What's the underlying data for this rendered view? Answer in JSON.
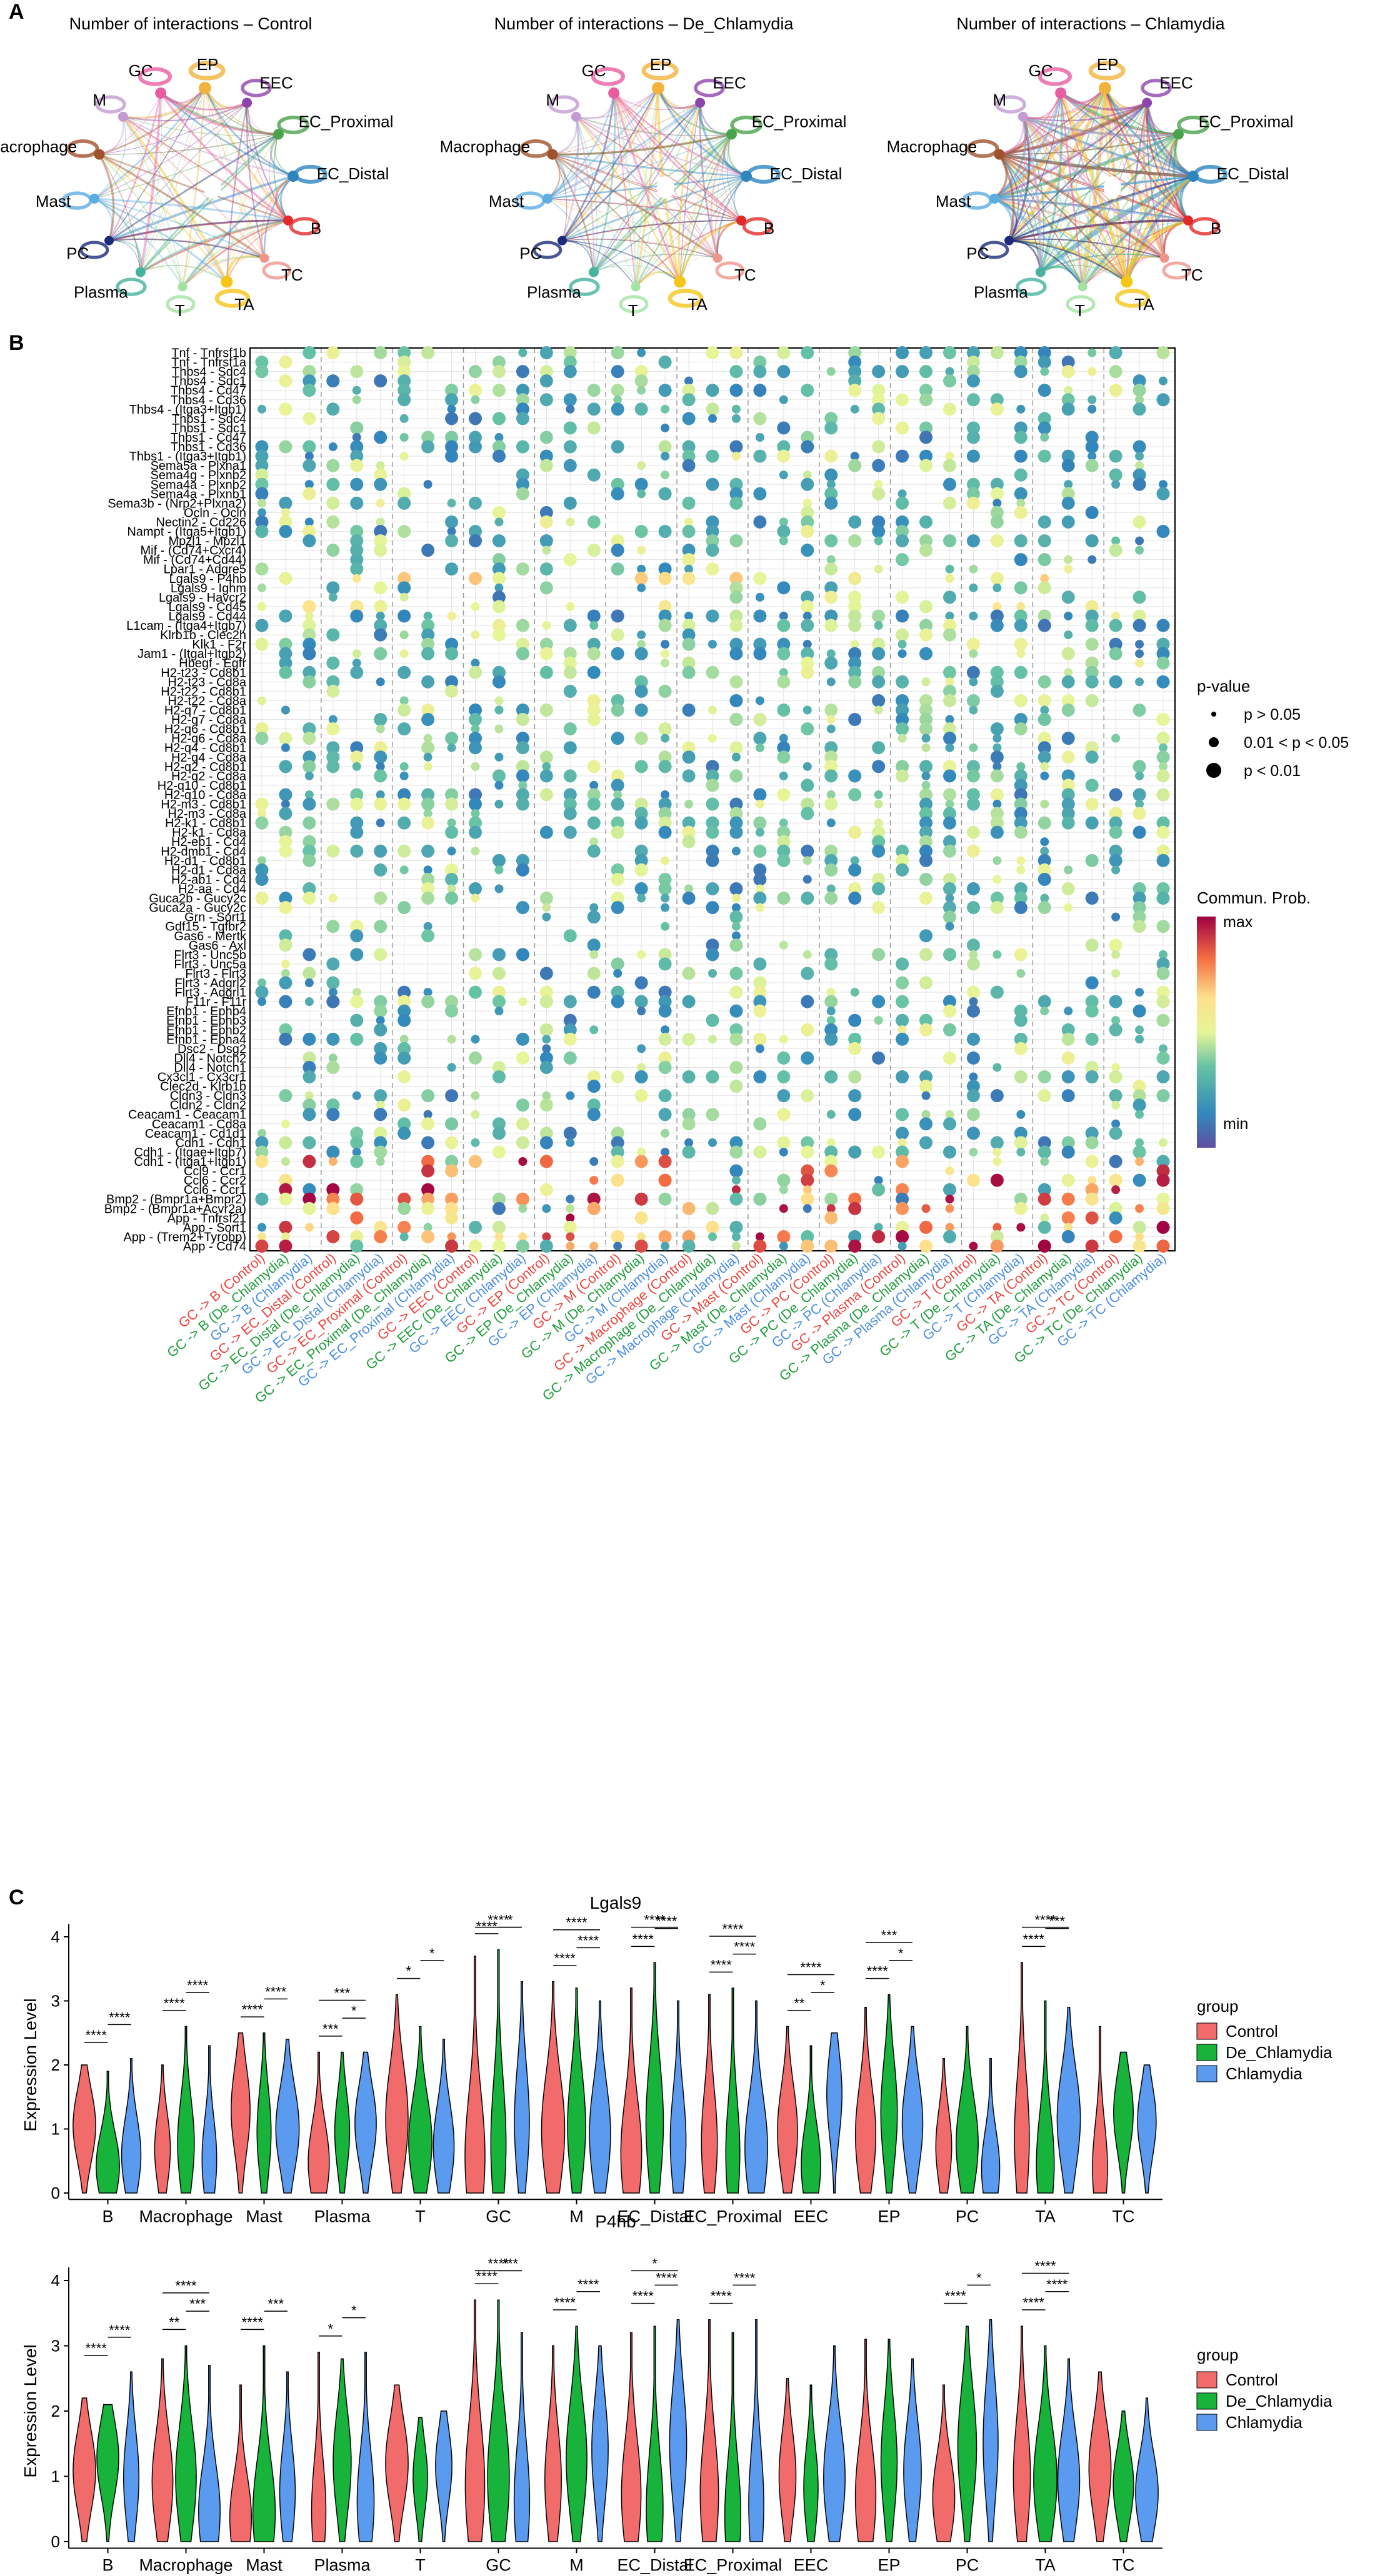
{
  "panels": {
    "a": "A",
    "b": "B",
    "c": "C"
  },
  "chart_data": [
    {
      "type": "network",
      "panel": "A",
      "title_prefix": "Number of interactions – ",
      "groups": [
        "Control",
        "De_Chlamydia",
        "Chlamydia"
      ],
      "nodes": [
        {
          "name": "EP",
          "color": "#F2B33D",
          "size": 2.0
        },
        {
          "name": "EEC",
          "color": "#8E44AD",
          "size": 1.2
        },
        {
          "name": "EC_Proximal",
          "color": "#49A34A",
          "size": 1.4
        },
        {
          "name": "EC_Distal",
          "color": "#2E86C1",
          "size": 1.6
        },
        {
          "name": "B",
          "color": "#E22A2A",
          "size": 1.2
        },
        {
          "name": "TC",
          "color": "#F1948A",
          "size": 1.0
        },
        {
          "name": "TA",
          "color": "#F5C518",
          "size": 1.8
        },
        {
          "name": "T",
          "color": "#A3E4A0",
          "size": 1.0
        },
        {
          "name": "Plasma",
          "color": "#45B39D",
          "size": 1.2
        },
        {
          "name": "PC",
          "color": "#1B2A7B",
          "size": 1.0
        },
        {
          "name": "Mast",
          "color": "#5DADE2",
          "size": 1.2
        },
        {
          "name": "Macrophage",
          "color": "#A0522D",
          "size": 1.4
        },
        {
          "name": "M",
          "color": "#C39BD3",
          "size": 1.2
        },
        {
          "name": "GC",
          "color": "#E85CA0",
          "size": 1.6
        }
      ]
    },
    {
      "type": "dotplot",
      "panel": "B",
      "pairs": [
        "Tnf - Tnfrsf1b",
        "Tnf - Tnfrsf1a",
        "Thbs4 - Sdc4",
        "Thbs4 - Sdc1",
        "Thbs4 - Cd47",
        "Thbs4 - Cd36",
        "Thbs4 - (Itga3+Itgb1)",
        "Thbs1 - Sdc4",
        "Thbs1 - Sdc1",
        "Thbs1 - Cd47",
        "Thbs1 - Cd36",
        "Thbs1 - (Itga3+Itgb1)",
        "Sema5a - Plxna1",
        "Sema4g - Plxnb2",
        "Sema4a - Plxnb2",
        "Sema4a - Plxnb1",
        "Sema3b - (Nrp2+Plxna2)",
        "Ocln - Ocln",
        "Nectin2 - Cd226",
        "Nampt - (Itga5+Itgb1)",
        "Mpzl1 - Mpzl1",
        "Mif - (Cd74+Cxcr4)",
        "Mif - (Cd74+Cd44)",
        "Lpar1 - Adgre5",
        "Lgals9 - P4hb",
        "Lgals9 - Ighm",
        "Lgals9 - Havcr2",
        "Lgals9 - Cd45",
        "Lgals9 - Cd44",
        "L1cam - (Itga4+Itgb7)",
        "Klrb1b - Clec2h",
        "Klk1 - F2r",
        "Jam1 - (Itgal+Itgb2)",
        "Hbegf - Egfr",
        "H2-t23 - Cd8b1",
        "H2-t23 - Cd8a",
        "H2-t22 - Cd8b1",
        "H2-t22 - Cd8a",
        "H2-q7 - Cd8b1",
        "H2-q7 - Cd8a",
        "H2-q6 - Cd8b1",
        "H2-q6 - Cd8a",
        "H2-q4 - Cd8b1",
        "H2-q4 - Cd8a",
        "H2-q2 - Cd8b1",
        "H2-q2 - Cd8a",
        "H2-q10 - Cd8b1",
        "H2-q10 - Cd8a",
        "H2-m3 - Cd8b1",
        "H2-m3 - Cd8a",
        "H2-k1 - Cd8b1",
        "H2-k1 - Cd8a",
        "H2-eb1 - Cd4",
        "H2-dmb1 - Cd4",
        "H2-d1 - Cd8b1",
        "H2-d1 - Cd8a",
        "H2-ab1 - Cd4",
        "H2-aa - Cd4",
        "Guca2b - Gucy2c",
        "Guca2a - Gucy2c",
        "Grn - Sort1",
        "Gdf15 - Tgfbr2",
        "Gas6 - Mertk",
        "Gas6 - Axl",
        "Flrt3 - Unc5b",
        "Flrt3 - Unc5a",
        "Flrt3 - Flrt3",
        "Flrt3 - Adgrl2",
        "Flrt3 - Adgrl1",
        "F11r - F11r",
        "Efnb1 - Ephb4",
        "Efnb1 - Ephb3",
        "Efnb1 - Ephb2",
        "Efnb1 - Epha4",
        "Dsc2 - Dsg2",
        "Dll4 - Notch2",
        "Dll4 - Notch1",
        "Cx3cl1 - Cx3cr1",
        "Clec2d - Klrb1b",
        "Cldn3 - Cldn3",
        "Cldn2 - Cldn2",
        "Ceacam1 - Ceacam1",
        "Ceacam1 - Cd8a",
        "Ceacam1 - Cd1d1",
        "Cdh1 - Cdh1",
        "Cdh1 - (Itgae+Itgb7)",
        "Cdh1 - (Itga1+Itgb1)",
        "Ccl9 - Ccr1",
        "Ccl6 - Ccr2",
        "Ccl6 - Ccr1",
        "Bmp2 - (Bmpr1a+Bmpr2)",
        "Bmp2 - (Bmpr1a+Acvr2a)",
        "App - Tnfrsf21",
        "App - Sort1",
        "App - (Trem2+Tyrobp)",
        "App - Cd74"
      ],
      "groups": [
        {
          "label": "GC -> B (Control)",
          "color": "#E8473F"
        },
        {
          "label": "GC -> B (De_Chlamydia)",
          "color": "#1E9E3A"
        },
        {
          "label": "GC -> B (Chlamydia)",
          "color": "#4A8FE0"
        },
        {
          "label": "GC -> EC_Distal (Control)",
          "color": "#E8473F"
        },
        {
          "label": "GC -> EC_Distal (De_Chlamydia)",
          "color": "#1E9E3A"
        },
        {
          "label": "GC -> EC_Distal (Chlamydia)",
          "color": "#4A8FE0"
        },
        {
          "label": "GC -> EC_Proximal (Control)",
          "color": "#E8473F"
        },
        {
          "label": "GC -> EC_Proximal (De_Chlamydia)",
          "color": "#1E9E3A"
        },
        {
          "label": "GC -> EC_Proximal (Chlamydia)",
          "color": "#4A8FE0"
        },
        {
          "label": "GC -> EEC (Control)",
          "color": "#E8473F"
        },
        {
          "label": "GC -> EEC (De_Chlamydia)",
          "color": "#1E9E3A"
        },
        {
          "label": "GC -> EEC (Chlamydia)",
          "color": "#4A8FE0"
        },
        {
          "label": "GC -> EP (Control)",
          "color": "#E8473F"
        },
        {
          "label": "GC -> EP (De_Chlamydia)",
          "color": "#1E9E3A"
        },
        {
          "label": "GC -> EP (Chlamydia)",
          "color": "#4A8FE0"
        },
        {
          "label": "GC -> M (Control)",
          "color": "#E8473F"
        },
        {
          "label": "GC -> M (De_Chlamydia)",
          "color": "#1E9E3A"
        },
        {
          "label": "GC -> M (Chlamydia)",
          "color": "#4A8FE0"
        },
        {
          "label": "GC -> Macrophage (Control)",
          "color": "#E8473F"
        },
        {
          "label": "GC -> Macrophage (De_Chlamydia)",
          "color": "#1E9E3A"
        },
        {
          "label": "GC -> Macrophage (Chlamydia)",
          "color": "#4A8FE0"
        },
        {
          "label": "GC -> Mast (Control)",
          "color": "#E8473F"
        },
        {
          "label": "GC -> Mast (De_Chlamydia)",
          "color": "#1E9E3A"
        },
        {
          "label": "GC -> Mast (Chlamydia)",
          "color": "#4A8FE0"
        },
        {
          "label": "GC -> PC (Control)",
          "color": "#E8473F"
        },
        {
          "label": "GC -> PC (De_Chlamydia)",
          "color": "#1E9E3A"
        },
        {
          "label": "GC -> PC (Chlamydia)",
          "color": "#4A8FE0"
        },
        {
          "label": "GC -> Plasma (Control)",
          "color": "#E8473F"
        },
        {
          "label": "GC -> Plasma (De_Chlamydia)",
          "color": "#1E9E3A"
        },
        {
          "label": "GC -> Plasma (Chlamydia)",
          "color": "#4A8FE0"
        },
        {
          "label": "GC -> T (Control)",
          "color": "#E8473F"
        },
        {
          "label": "GC -> T (De_Chlamydia)",
          "color": "#1E9E3A"
        },
        {
          "label": "GC -> T (Chlamydia)",
          "color": "#4A8FE0"
        },
        {
          "label": "GC -> TA (Control)",
          "color": "#E8473F"
        },
        {
          "label": "GC -> TA (De_Chlamydia)",
          "color": "#1E9E3A"
        },
        {
          "label": "GC -> TA (Chlamydia)",
          "color": "#4A8FE0"
        },
        {
          "label": "GC -> TC (Control)",
          "color": "#E8473F"
        },
        {
          "label": "GC -> TC (De_Chlamydia)",
          "color": "#1E9E3A"
        },
        {
          "label": "GC -> TC (Chlamydia)",
          "color": "#4A8FE0"
        }
      ],
      "legend": {
        "pvalue_title": "p-value",
        "pvalue_levels": [
          "p > 0.05",
          "0.01 < p < 0.05",
          "p < 0.01"
        ],
        "prob_title": "Commun. Prob.",
        "prob_max": "max",
        "prob_min": "min"
      }
    },
    {
      "type": "violin",
      "panel": "C",
      "genes": [
        "Lgals9",
        "P4hb"
      ],
      "ylabel": "Expression Level",
      "ylim": [
        0,
        4.2
      ],
      "yticks": [
        0,
        1,
        2,
        3,
        4
      ],
      "categories": [
        "B",
        "Macrophage",
        "Mast",
        "Plasma",
        "T",
        "GC",
        "M",
        "EC_Distal",
        "EC_Proximal",
        "EEC",
        "EP",
        "PC",
        "TA",
        "TC"
      ],
      "series": [
        {
          "name": "Control",
          "color": "#F26B6B"
        },
        {
          "name": "De_Chlamydia",
          "color": "#17B33A"
        },
        {
          "name": "Chlamydia",
          "color": "#5B9BEF"
        }
      ],
      "legend_title": "group",
      "max_values": {
        "Lgals9": [
          [
            2.0,
            1.9,
            2.1
          ],
          [
            2.0,
            2.6,
            2.3
          ],
          [
            2.5,
            2.5,
            2.4
          ],
          [
            2.2,
            2.2,
            2.2
          ],
          [
            3.1,
            2.6,
            2.4
          ],
          [
            3.7,
            3.8,
            3.3
          ],
          [
            3.3,
            3.2,
            3.0
          ],
          [
            3.2,
            3.6,
            3.0
          ],
          [
            3.1,
            3.2,
            3.0
          ],
          [
            2.6,
            2.3,
            2.5
          ],
          [
            2.9,
            3.1,
            2.6
          ],
          [
            2.1,
            2.6,
            2.1
          ],
          [
            3.6,
            3.0,
            2.9
          ],
          [
            2.6,
            2.2,
            2.0
          ]
        ],
        "P4hb": [
          [
            2.2,
            2.1,
            2.6
          ],
          [
            2.8,
            3.0,
            2.7
          ],
          [
            2.4,
            3.0,
            2.6
          ],
          [
            2.9,
            2.8,
            2.9
          ],
          [
            2.4,
            1.9,
            2.0
          ],
          [
            3.7,
            3.7,
            3.2
          ],
          [
            3.0,
            3.3,
            3.0
          ],
          [
            3.2,
            3.3,
            3.4
          ],
          [
            3.4,
            3.2,
            3.4
          ],
          [
            2.5,
            2.4,
            3.0
          ],
          [
            3.1,
            3.1,
            2.8
          ],
          [
            2.4,
            3.3,
            3.4
          ],
          [
            3.3,
            3.0,
            2.8
          ],
          [
            2.6,
            2.0,
            2.2
          ]
        ]
      },
      "significance": {
        "Lgals9": [
          [
            "****",
            "****"
          ],
          [
            "****",
            "****"
          ],
          [
            "****",
            "****"
          ],
          [
            "***",
            "*",
            "***"
          ],
          [
            "*",
            "*"
          ],
          [
            "****",
            "*",
            "****"
          ],
          [
            "****",
            "****",
            "****"
          ],
          [
            "****",
            "****",
            "****"
          ],
          [
            "****",
            "****",
            "****"
          ],
          [
            "**",
            "*",
            "****"
          ],
          [
            "****",
            "*",
            "***"
          ],
          [],
          [
            "****",
            "***",
            "****"
          ],
          []
        ],
        "P4hb": [
          [
            "****",
            "****"
          ],
          [
            "**",
            "***",
            "****"
          ],
          [
            "****",
            "***"
          ],
          [
            "*",
            "*"
          ],
          [],
          [
            "****",
            "***",
            "****"
          ],
          [
            "****",
            "****"
          ],
          [
            "****",
            "****",
            "*"
          ],
          [
            "****",
            "****"
          ],
          [],
          [],
          [
            "****",
            "*"
          ],
          [
            "****",
            "****",
            "****"
          ],
          []
        ]
      }
    }
  ]
}
